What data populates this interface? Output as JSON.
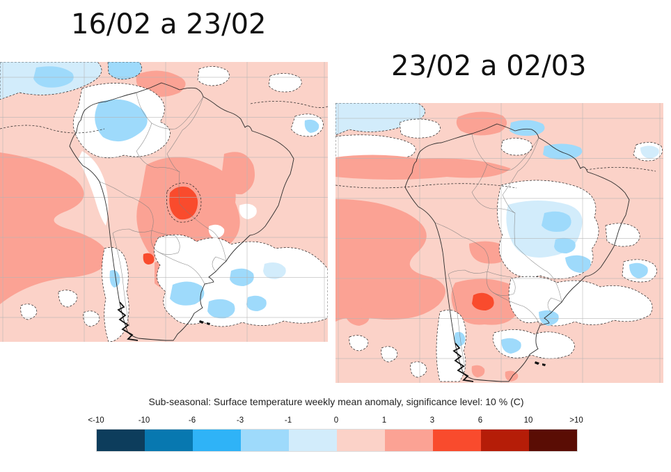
{
  "figure": {
    "background": "#ffffff",
    "description_kind": "sub-seasonal surface temperature anomaly maps, South America"
  },
  "panels": [
    {
      "id": "week1",
      "title": "16/02 a 23/02"
    },
    {
      "id": "week2",
      "title": "23/02 a 02/03"
    }
  ],
  "legend": {
    "caption": "Sub-seasonal: Surface temperature weekly mean anomaly, significance level: 10 % (C)",
    "units": "C",
    "significance_level": "10 %",
    "tick_labels": [
      "<-10",
      "-10",
      "-6",
      "-3",
      "-1",
      "0",
      "1",
      "3",
      "6",
      "10",
      ">10"
    ],
    "bin_edges": [
      -10,
      -6,
      -3,
      -1,
      0,
      1,
      3,
      6,
      10
    ],
    "colors": [
      "#0d3d5c",
      "#0878b0",
      "#2fb3f7",
      "#9edafb",
      "#d2ecfb",
      "#fbd2c8",
      "#fba294",
      "#f94b2d",
      "#b51d08",
      "#5a0d04"
    ]
  },
  "map_colors": {
    "warm_0_1": "#fbd2c8",
    "warm_1_3": "#fba294",
    "warm_3_6": "#f94b2d",
    "cool_0_1": "#d2ecfb",
    "cool_1_3": "#9edafb",
    "not_significant": "#ffffff",
    "gridline": "#b5b5b5",
    "coastline": "#2b2b2b"
  }
}
